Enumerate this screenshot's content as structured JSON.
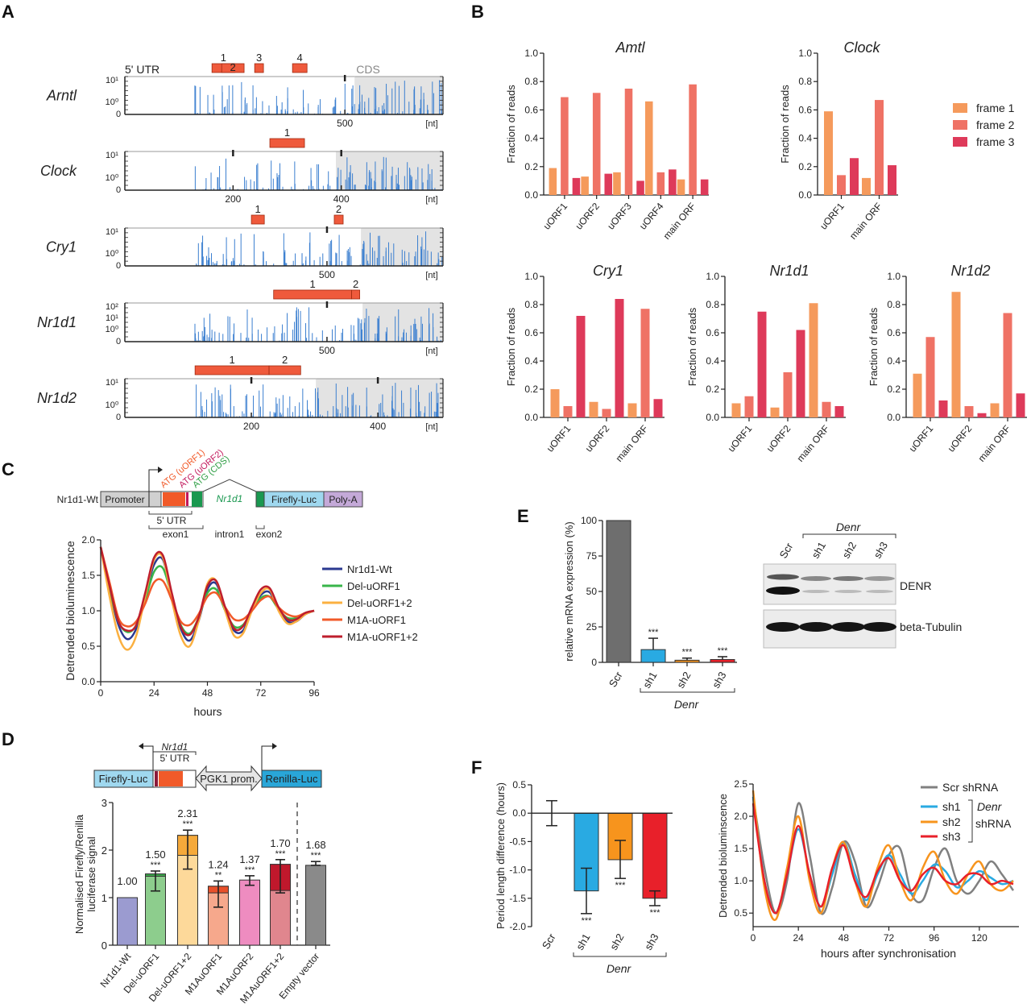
{
  "figure": {
    "panel_labels": [
      "A",
      "B",
      "C",
      "D",
      "E",
      "F"
    ]
  },
  "panel_c_diagram": {
    "construct_label": "Nr1d1-Wt",
    "promoter": "Promoter",
    "gene": "Nr1d1",
    "reporter": "Firefly-Luc",
    "polya": "Poly-A",
    "atg_labels": [
      "ATG (uORF1)",
      "ATG (uORF2)",
      "ATG (CDS)"
    ],
    "atg_colors": [
      "#f15a29",
      "#c2185b",
      "#2e9e44"
    ],
    "utr_label": "5' UTR",
    "exon1": "exon1",
    "intron1": "intron1",
    "exon2": "exon2"
  },
  "panel_d_diagram": {
    "firefly": "Firefly-Luc",
    "gene": "Nr1d1",
    "utr_label": "5' UTR",
    "promoter": "PGK1 prom.",
    "renilla": "Renilla-Luc"
  },
  "panel_e_blot": {
    "lanes": [
      "Scr",
      "sh1",
      "sh2",
      "sh3"
    ],
    "group_label": "Denr",
    "rows": [
      "DENR",
      "beta-Tubulin"
    ]
  },
  "chart_data": [
    {
      "type": "bar",
      "utr_label": "5' UTR",
      "cds_label": "CDS",
      "x_unit": "[nt]",
      "tracks": [
        {
          "gene": "Arntl",
          "y_tick_labels": [
            "10¹",
            "10⁰",
            "0"
          ],
          "x_ticks": [
            500
          ],
          "x_tick_labels": [
            "500"
          ],
          "nt_max": 723,
          "cds_start": 522,
          "uorfs": [
            {
              "label": "1",
              "start": 198,
              "end": 250
            },
            {
              "label": "2",
              "start": 220,
              "end": 271
            },
            {
              "label": "3",
              "start": 295,
              "end": 315
            },
            {
              "label": "4",
              "start": 381,
              "end": 414
            }
          ]
        },
        {
          "gene": "Clock",
          "y_tick_labels": [
            "10¹",
            "10⁰",
            "0"
          ],
          "x_ticks": [
            200,
            400
          ],
          "x_tick_labels": [
            "200",
            "400"
          ],
          "nt_max": 588,
          "cds_start": 390,
          "uorfs": [
            {
              "label": "1",
              "start": 268,
              "end": 332
            }
          ]
        },
        {
          "gene": "Cry1",
          "y_tick_labels": [
            "10¹",
            "10⁰",
            "0"
          ],
          "x_ticks": [
            500
          ],
          "x_tick_labels": [
            "500"
          ],
          "nt_max": 787,
          "cds_start": 584,
          "uorfs": [
            {
              "label": "1",
              "start": 313,
              "end": 345
            },
            {
              "label": "2",
              "start": 518,
              "end": 540
            }
          ]
        },
        {
          "gene": "Nr1d1",
          "y_tick_labels": [
            "10²",
            "10¹",
            "10⁰",
            "0"
          ],
          "x_ticks": [
            500
          ],
          "x_tick_labels": [
            "500"
          ],
          "nt_max": 787,
          "cds_start": 588,
          "uorfs": [
            {
              "label": "1",
              "start": 368,
              "end": 561
            },
            {
              "label": "2",
              "start": 561,
              "end": 581
            }
          ]
        },
        {
          "gene": "Nr1d2",
          "y_tick_labels": [
            "10¹",
            "10⁰",
            "0"
          ],
          "x_ticks": [
            200,
            400
          ],
          "x_tick_labels": [
            "200",
            "400"
          ],
          "nt_max": 503,
          "cds_start": 302,
          "uorfs": [
            {
              "label": "1",
              "start": 111,
              "end": 228
            },
            {
              "label": "2",
              "start": 228,
              "end": 278
            }
          ]
        }
      ]
    },
    {
      "type": "bar",
      "title": "Amtl",
      "ylabel": "Fraction of reads",
      "ylim": [
        0,
        1
      ],
      "yticks": [
        0,
        0.2,
        0.4,
        0.6,
        0.8,
        1.0
      ],
      "ytick_labels": [
        "0.0",
        "0.2",
        "0.4",
        "0.6",
        "0.8",
        "1.0"
      ],
      "categories": [
        "uORF1",
        "uORF2",
        "uORF3",
        "uORF4",
        "main ORF"
      ],
      "series": [
        {
          "name": "frame 1",
          "color": "#f59a5c",
          "values": [
            0.19,
            0.13,
            0.16,
            0.66,
            0.11
          ]
        },
        {
          "name": "frame 2",
          "color": "#ef7265",
          "values": [
            0.69,
            0.72,
            0.75,
            0.16,
            0.78
          ]
        },
        {
          "name": "frame 3",
          "color": "#de3a5a",
          "values": [
            0.12,
            0.15,
            0.1,
            0.18,
            0.11
          ]
        }
      ],
      "legend": "right"
    },
    {
      "type": "bar",
      "title": "Clock",
      "ylabel": "Fraction of reads",
      "ylim": [
        0,
        1
      ],
      "yticks": [
        0,
        0.2,
        0.4,
        0.6,
        0.8,
        1.0
      ],
      "ytick_labels": [
        "0.0",
        "0.2",
        "0.4",
        "0.6",
        "0.8",
        "1.0"
      ],
      "categories": [
        "uORF1",
        "main ORF"
      ],
      "series": [
        {
          "name": "frame 1",
          "color": "#f59a5c",
          "values": [
            0.59,
            0.12
          ]
        },
        {
          "name": "frame 2",
          "color": "#ef7265",
          "values": [
            0.14,
            0.67
          ]
        },
        {
          "name": "frame 3",
          "color": "#de3a5a",
          "values": [
            0.26,
            0.21
          ]
        }
      ]
    },
    {
      "type": "bar",
      "title": "Cry1",
      "ylabel": "Fraction of reads",
      "ylim": [
        0,
        1
      ],
      "yticks": [
        0,
        0.2,
        0.4,
        0.6,
        0.8,
        1.0
      ],
      "ytick_labels": [
        "0.0",
        "0.2",
        "0.4",
        "0.6",
        "0.8",
        "1.0"
      ],
      "categories": [
        "uORF1",
        "uORF2",
        "main ORF"
      ],
      "series": [
        {
          "name": "frame 1",
          "color": "#f59a5c",
          "values": [
            0.2,
            0.11,
            0.1
          ]
        },
        {
          "name": "frame 2",
          "color": "#ef7265",
          "values": [
            0.08,
            0.06,
            0.77
          ]
        },
        {
          "name": "frame 3",
          "color": "#de3a5a",
          "values": [
            0.72,
            0.84,
            0.13
          ]
        }
      ]
    },
    {
      "type": "bar",
      "title": "Nr1d1",
      "ylabel": "Fraction of reads",
      "ylim": [
        0,
        1
      ],
      "yticks": [
        0,
        0.2,
        0.4,
        0.6,
        0.8,
        1.0
      ],
      "ytick_labels": [
        "0.0",
        "0.2",
        "0.4",
        "0.6",
        "0.8",
        "1.0"
      ],
      "categories": [
        "uORF1",
        "uORF2",
        "main ORF"
      ],
      "series": [
        {
          "name": "frame 1",
          "color": "#f59a5c",
          "values": [
            0.1,
            0.07,
            0.81
          ]
        },
        {
          "name": "frame 2",
          "color": "#ef7265",
          "values": [
            0.15,
            0.32,
            0.11
          ]
        },
        {
          "name": "frame 3",
          "color": "#de3a5a",
          "values": [
            0.75,
            0.62,
            0.08
          ]
        }
      ]
    },
    {
      "type": "bar",
      "title": "Nr1d2",
      "ylabel": "Fraction of reads",
      "ylim": [
        0,
        1
      ],
      "yticks": [
        0,
        0.2,
        0.4,
        0.6,
        0.8,
        1.0
      ],
      "ytick_labels": [
        "0.0",
        "0.2",
        "0.4",
        "0.6",
        "0.8",
        "1.0"
      ],
      "categories": [
        "uORF1",
        "uORF2",
        "main ORF"
      ],
      "series": [
        {
          "name": "frame 1",
          "color": "#f59a5c",
          "values": [
            0.31,
            0.89,
            0.1
          ]
        },
        {
          "name": "frame 2",
          "color": "#ef7265",
          "values": [
            0.57,
            0.08,
            0.74
          ]
        },
        {
          "name": "frame 3",
          "color": "#de3a5a",
          "values": [
            0.12,
            0.03,
            0.17
          ]
        }
      ]
    },
    {
      "type": "line",
      "xlabel": "hours",
      "ylabel": "Detrended bioluminescence",
      "xlim": [
        0,
        96
      ],
      "ylim": [
        0,
        2
      ],
      "xticks": [
        0,
        24,
        48,
        72,
        96
      ],
      "xtick_labels": [
        "0",
        "24",
        "48",
        "72",
        "96"
      ],
      "yticks": [
        0,
        0.5,
        1,
        1.5,
        2
      ],
      "ytick_labels": [
        "0.0",
        "0.5",
        "1.0",
        "1.5",
        "2.0"
      ],
      "legend": "right",
      "x": [
        0,
        4,
        8,
        12,
        16,
        20,
        24,
        28,
        32,
        36,
        40,
        44,
        48,
        52,
        56,
        60,
        64,
        68,
        72,
        76,
        80,
        84,
        88,
        92,
        96
      ],
      "series": [
        {
          "name": "Nr1d1-Wt",
          "color": "#2b3990",
          "values": [
            1.9,
            1.3,
            0.8,
            0.6,
            0.75,
            1.2,
            1.65,
            1.72,
            1.2,
            0.75,
            0.58,
            0.85,
            1.3,
            1.38,
            1.0,
            0.72,
            0.72,
            1.0,
            1.22,
            1.26,
            1.02,
            0.85,
            0.85,
            0.95,
            1.0
          ]
        },
        {
          "name": "Del-uORF1",
          "color": "#39b54a",
          "values": [
            1.9,
            1.3,
            0.85,
            0.7,
            0.8,
            1.15,
            1.55,
            1.6,
            1.2,
            0.8,
            0.68,
            0.9,
            1.25,
            1.3,
            1.0,
            0.78,
            0.8,
            1.0,
            1.18,
            1.2,
            1.02,
            0.9,
            0.9,
            0.97,
            1.0
          ]
        },
        {
          "name": "Del-uORF1+2",
          "color": "#fbb040",
          "values": [
            1.9,
            1.2,
            0.65,
            0.45,
            0.65,
            1.2,
            1.72,
            1.75,
            1.15,
            0.65,
            0.5,
            0.85,
            1.38,
            1.42,
            1.0,
            0.65,
            0.68,
            1.0,
            1.25,
            1.3,
            1.0,
            0.82,
            0.85,
            0.95,
            1.0
          ]
        },
        {
          "name": "M1A-uORF1",
          "color": "#f15a29",
          "values": [
            1.9,
            1.4,
            0.9,
            0.78,
            0.85,
            1.1,
            1.4,
            1.42,
            1.15,
            0.85,
            0.8,
            0.95,
            1.2,
            1.25,
            1.05,
            0.88,
            0.88,
            1.0,
            1.15,
            1.2,
            1.05,
            0.95,
            0.92,
            0.97,
            1.0
          ]
        },
        {
          "name": "M1A-uORF1+2",
          "color": "#be1e2d",
          "values": [
            1.9,
            1.35,
            0.85,
            0.72,
            0.8,
            1.25,
            1.75,
            1.78,
            1.25,
            0.78,
            0.66,
            0.9,
            1.35,
            1.42,
            1.05,
            0.75,
            0.78,
            1.05,
            1.3,
            1.32,
            1.05,
            0.88,
            0.88,
            0.97,
            1.0
          ]
        }
      ]
    },
    {
      "type": "bar",
      "ylabel": "Normalised Firefly/Renilla",
      "ylabel2": "luciferase signal",
      "ylim": [
        0,
        3
      ],
      "yticks": [
        0,
        1,
        2,
        3
      ],
      "ytick_labels": [
        "0",
        "1",
        "2",
        "3"
      ],
      "categories": [
        "Nr1d1-Wt",
        "Del-uORF1",
        "Del-uORF1+2",
        "M1AuORF1",
        "M1AuORF2",
        "M1AuORF1+2",
        "Empty vector"
      ],
      "values": [
        1.0,
        1.5,
        2.31,
        1.24,
        1.37,
        1.7,
        1.68
      ],
      "value_labels": [
        "1.00",
        "1.50",
        "2.31",
        "1.24",
        "1.37",
        "1.70",
        "1.68"
      ],
      "significance": [
        "",
        "***",
        "***",
        "**",
        "***",
        "***",
        "***"
      ],
      "lower_segment": [
        null,
        1.45,
        1.89,
        1.1,
        null,
        1.15,
        null
      ],
      "error_range": [
        null,
        [
          1.14,
          1.56
        ],
        [
          1.6,
          2.42
        ],
        [
          0.8,
          1.35
        ],
        [
          1.26,
          1.46
        ],
        [
          1.1,
          1.8
        ],
        [
          1.68,
          1.76
        ]
      ],
      "colors": [
        "#9b9bd0",
        "#8dcd8d",
        "#fdd99a",
        "#f6a88c",
        "#ee8cc0",
        "#e0868e",
        "#8a8a8a"
      ],
      "top_colors": [
        null,
        "#3aa84a",
        "#f5a93a",
        "#e8502a",
        null,
        "#c0182c",
        null
      ]
    },
    {
      "type": "bar",
      "ylabel": "relative mRNA expression (%)",
      "ylim": [
        0,
        100
      ],
      "yticks": [
        0,
        25,
        50,
        75,
        100
      ],
      "ytick_labels": [
        "0",
        "25",
        "50",
        "75",
        "100"
      ],
      "categories": [
        "Scr",
        "sh1",
        "sh2",
        "sh3"
      ],
      "group_label": "Denr",
      "values": [
        100,
        9,
        1.5,
        2
      ],
      "error_upper": [
        null,
        17,
        3,
        4
      ],
      "significance": [
        "",
        "***",
        "***",
        "***"
      ],
      "colors": [
        "#6e6e6e",
        "#29aae2",
        "#f7941d",
        "#e8202a"
      ]
    },
    {
      "type": "bar",
      "ylabel": "Period length difference (hours)",
      "ylim": [
        -2,
        0.5
      ],
      "yticks": [
        0.5,
        0,
        -0.5,
        -1,
        -1.5,
        -2
      ],
      "ytick_labels": [
        "0.5",
        "0.0",
        "-0.5",
        "-1.0",
        "-1.5",
        "-2.0"
      ],
      "categories": [
        "Scr",
        "sh1",
        "sh2",
        "sh3"
      ],
      "group_label": "Denr",
      "values": [
        0,
        -1.37,
        -0.82,
        -1.5
      ],
      "error_range": [
        [
          -0.22,
          0.22
        ],
        [
          -1.77,
          -0.97
        ],
        [
          -1.15,
          -0.48
        ],
        [
          -1.63,
          -1.37
        ]
      ],
      "significance": [
        "",
        "***",
        "***",
        "***"
      ],
      "colors": [
        "#ffffff",
        "#29aae2",
        "#f7941d",
        "#e8202a"
      ]
    },
    {
      "type": "line",
      "xlabel": "hours after synchronisation",
      "ylabel": "Detrended bioluminscence",
      "xlim": [
        0,
        141
      ],
      "ylim": [
        0.29,
        2.5
      ],
      "xticks": [
        0,
        24,
        48,
        72,
        96,
        120
      ],
      "xtick_labels": [
        "0",
        "24",
        "48",
        "72",
        "96",
        "120"
      ],
      "yticks": [
        0.5,
        1.0,
        1.5,
        2.0,
        2.5
      ],
      "ytick_labels": [
        "0.5",
        "1.0",
        "1.5",
        "2.0",
        "2.5"
      ],
      "legend": "top-right",
      "legend_group": "Denr",
      "legend_group2": "shRNA",
      "x": [
        0,
        6,
        12,
        18,
        24,
        30,
        36,
        42,
        48,
        54,
        60,
        66,
        72,
        78,
        84,
        90,
        96,
        102,
        108,
        114,
        120,
        126,
        132,
        138
      ],
      "series": [
        {
          "name": "Scr shRNA",
          "color": "#808080",
          "values": [
            2.3,
            1.2,
            0.5,
            1.0,
            2.2,
            1.4,
            0.5,
            0.9,
            1.6,
            1.3,
            0.6,
            0.9,
            1.4,
            1.5,
            0.8,
            0.7,
            1.2,
            1.5,
            1.0,
            0.8,
            1.0,
            1.3,
            1.1,
            0.85
          ]
        },
        {
          "name": "sh1",
          "color": "#29aae2",
          "values": [
            2.3,
            1.0,
            0.5,
            1.1,
            1.8,
            1.1,
            0.6,
            1.1,
            1.6,
            1.1,
            0.7,
            1.1,
            1.4,
            1.1,
            0.8,
            1.0,
            1.25,
            1.15,
            0.9,
            1.0,
            1.15,
            1.05,
            0.95,
            1.0
          ]
        },
        {
          "name": "sh2",
          "color": "#f7941d",
          "values": [
            2.4,
            0.9,
            0.4,
            1.2,
            2.0,
            1.0,
            0.5,
            1.2,
            1.6,
            1.0,
            0.6,
            1.2,
            1.55,
            1.0,
            0.7,
            1.2,
            1.45,
            1.0,
            0.8,
            1.1,
            1.3,
            0.95,
            0.85,
            1.0
          ]
        },
        {
          "name": "sh3",
          "color": "#e8202a",
          "values": [
            2.2,
            1.0,
            0.5,
            1.1,
            1.85,
            1.1,
            0.6,
            1.2,
            1.55,
            1.0,
            0.75,
            1.15,
            1.35,
            1.0,
            0.85,
            1.1,
            1.2,
            1.0,
            0.95,
            1.1,
            1.1,
            0.95,
            1.0,
            0.95
          ]
        }
      ]
    }
  ]
}
